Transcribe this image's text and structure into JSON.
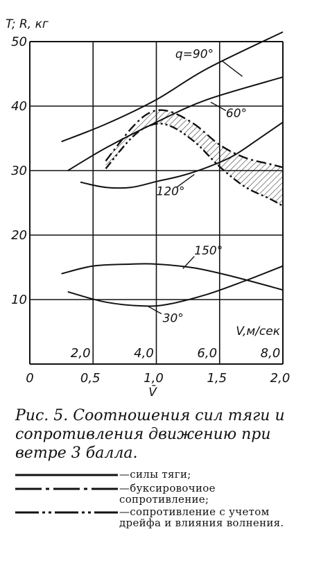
{
  "chart_data": {
    "type": "line",
    "ylabel": "T; R, кг",
    "xlabel_top": "V,м/сек",
    "xlabel_bottom": "V̄",
    "ylim": [
      0,
      50
    ],
    "xlim": [
      0,
      2.0
    ],
    "yticks": [
      "10",
      "20",
      "30",
      "40",
      "50"
    ],
    "xticks_bottom": [
      "0",
      "0,5",
      "1,0",
      "1,5",
      "2,0"
    ],
    "xticks_bottom_values": [
      0,
      0.5,
      1.0,
      1.5,
      2.0
    ],
    "xticks_top": [
      "2,0",
      "4,0",
      "6,0",
      "8,0"
    ],
    "xticks_top_values": [
      0.5,
      1.0,
      1.5,
      2.0
    ],
    "grid": true,
    "series": [
      {
        "name": "q=90°",
        "style": "solid",
        "x": [
          0.25,
          0.6,
          1.0,
          1.4,
          2.0
        ],
        "y": [
          34.5,
          37.2,
          41.0,
          45.8,
          51.5
        ]
      },
      {
        "name": "60°",
        "style": "solid",
        "x": [
          0.3,
          0.6,
          1.0,
          1.4,
          2.0
        ],
        "y": [
          30.0,
          33.5,
          37.5,
          41.0,
          44.5
        ]
      },
      {
        "name": "120°",
        "style": "solid",
        "x": [
          0.4,
          0.6,
          0.8,
          1.0,
          1.2,
          1.4,
          1.6,
          1.8,
          2.0
        ],
        "y": [
          28.2,
          27.4,
          27.4,
          28.3,
          29.2,
          30.5,
          32.2,
          34.8,
          37.5
        ]
      },
      {
        "name": "150°",
        "style": "solid",
        "x": [
          0.25,
          0.5,
          0.8,
          1.0,
          1.3,
          1.6,
          2.0
        ],
        "y": [
          14.0,
          15.2,
          15.5,
          15.5,
          14.9,
          13.6,
          11.5
        ]
      },
      {
        "name": "30°",
        "style": "solid",
        "x": [
          0.3,
          0.6,
          0.9,
          1.1,
          1.4,
          1.7,
          2.0
        ],
        "y": [
          11.2,
          9.6,
          9.0,
          9.3,
          10.8,
          12.9,
          15.2
        ]
      },
      {
        "name": "буксировочное сопротивление",
        "style": "dash-dot",
        "x": [
          0.6,
          0.8,
          0.95,
          1.1,
          1.3,
          1.5,
          1.7,
          1.9,
          2.0
        ],
        "y": [
          31.5,
          36.5,
          39.0,
          39.2,
          37.2,
          34.0,
          32.0,
          31.0,
          30.5
        ]
      },
      {
        "name": "сопротивление с учетом дрейфа и влияния волнения",
        "style": "dash-dot-dot",
        "x": [
          0.6,
          0.8,
          0.95,
          1.1,
          1.3,
          1.5,
          1.7,
          1.9,
          2.0
        ],
        "y": [
          30.3,
          35.0,
          37.0,
          37.0,
          34.5,
          30.6,
          27.5,
          25.6,
          24.5
        ]
      }
    ],
    "annotations": [
      {
        "text": "q=90°",
        "x": 1.15,
        "y": 47.5
      },
      {
        "text": "60°",
        "x": 1.55,
        "y": 38.3
      },
      {
        "text": "120°",
        "x": 1.0,
        "y": 26.2
      },
      {
        "text": "150°",
        "x": 1.3,
        "y": 17.0
      },
      {
        "text": "30°",
        "x": 1.05,
        "y": 6.5
      }
    ]
  },
  "caption": {
    "text": "Рис. 5. Соотношения сил тяги и сопротивления движению при ветре 3 балла."
  },
  "legend": {
    "items": [
      {
        "style": "solid",
        "text": "—силы тяги;"
      },
      {
        "style": "dash-dot",
        "text": "—буксировочиое сопротивление;"
      },
      {
        "style": "dash-dot-dot",
        "text": "—сопротивление с учетом дрейфа и влияния волнения."
      }
    ]
  }
}
